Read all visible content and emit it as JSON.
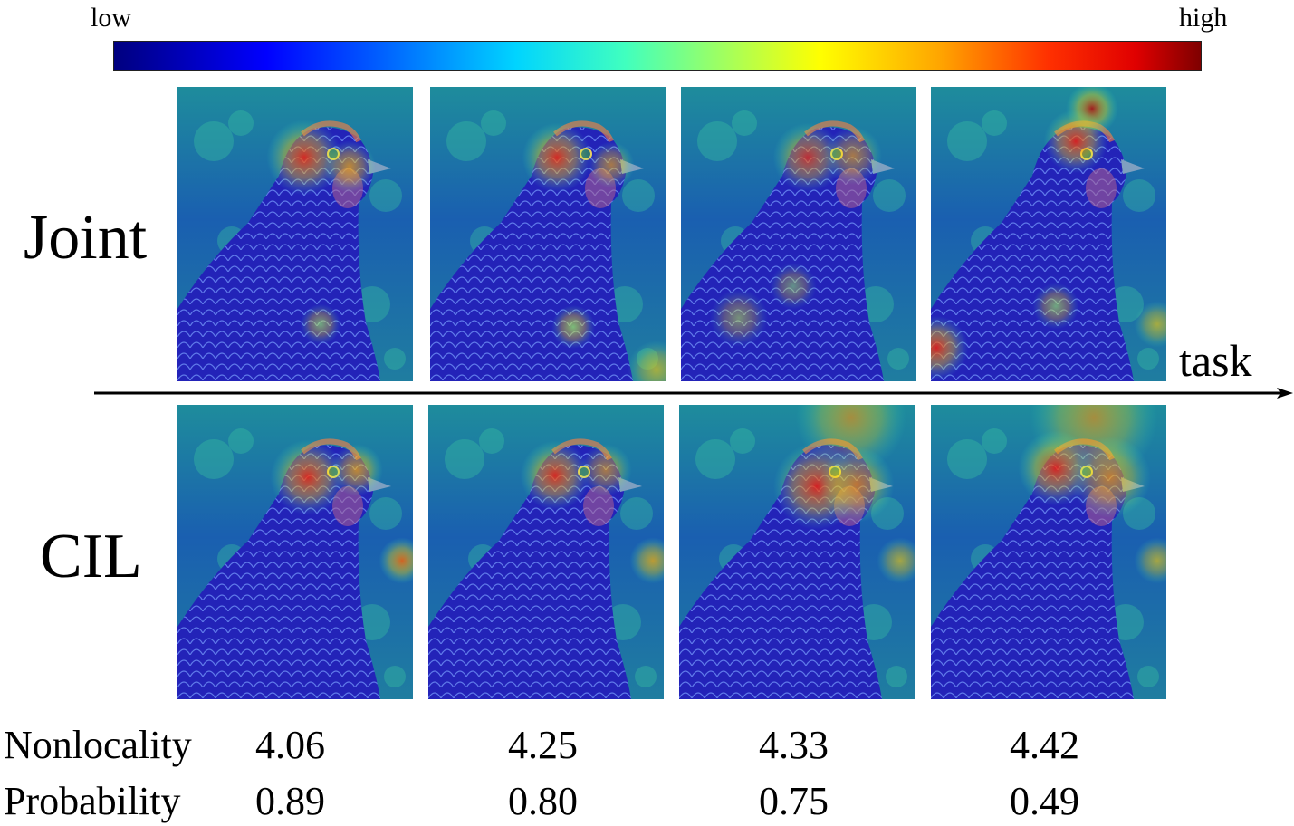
{
  "colorbar": {
    "low_label": "low",
    "high_label": "high",
    "colormap": "jet",
    "stops": [
      "#00007f",
      "#0000ff",
      "#0064ff",
      "#00d4ff",
      "#40ffbf",
      "#a0ff60",
      "#ffff00",
      "#ffa500",
      "#ff3000",
      "#e00000",
      "#7f0000"
    ]
  },
  "rows": [
    {
      "label": "Joint",
      "images": [
        "chicken-heatmap",
        "chicken-heatmap",
        "chicken-heatmap",
        "chicken-heatmap"
      ]
    },
    {
      "label": "CIL",
      "images": [
        "chicken-heatmap",
        "chicken-heatmap",
        "chicken-heatmap",
        "chicken-heatmap"
      ]
    }
  ],
  "axis": {
    "label": "task"
  },
  "metrics": [
    {
      "name": "Nonlocality",
      "values": [
        "4.06",
        "4.25",
        "4.33",
        "4.42"
      ]
    },
    {
      "name": "Probability",
      "values": [
        "0.89",
        "0.80",
        "0.75",
        "0.49"
      ]
    }
  ]
}
